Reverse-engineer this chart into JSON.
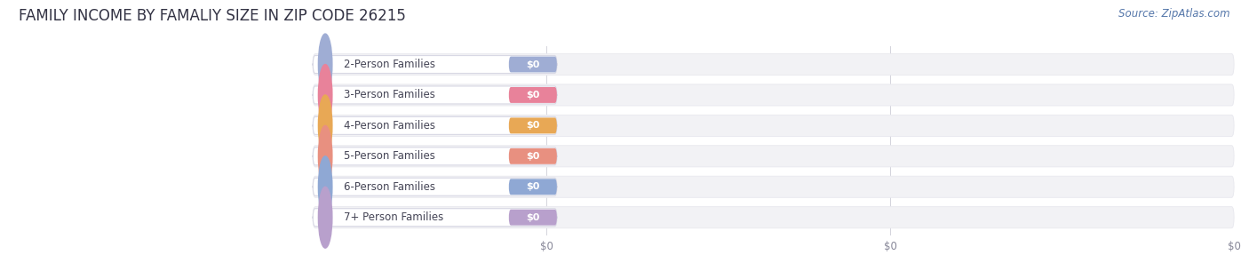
{
  "title": "FAMILY INCOME BY FAMALIY SIZE IN ZIP CODE 26215",
  "source_text": "Source: ZipAtlas.com",
  "categories": [
    "2-Person Families",
    "3-Person Families",
    "4-Person Families",
    "5-Person Families",
    "6-Person Families",
    "7+ Person Families"
  ],
  "values": [
    0,
    0,
    0,
    0,
    0,
    0
  ],
  "bar_colors": [
    "#9fadd4",
    "#e8829a",
    "#e8a855",
    "#e89080",
    "#8fa8d4",
    "#b8a0cc"
  ],
  "label_bg_colors": [
    "#f0f2fa",
    "#fef0f3",
    "#fef6ee",
    "#fef0ee",
    "#f0f2fa",
    "#f5f0fa"
  ],
  "bar_track_color": "#f2f2f5",
  "bar_track_edge": "#e8e8ee",
  "background_color": "#ffffff",
  "title_fontsize": 12,
  "source_fontsize": 8.5,
  "label_fontsize": 8.5,
  "value_fontsize": 8,
  "tick_fontsize": 8.5,
  "tick_color": "#888899",
  "label_text_color": "#444455",
  "xlim_min": 0,
  "xlim_max": 100,
  "n_xticks": 3,
  "xtick_vals": [
    0,
    50,
    100
  ],
  "xtick_labels": [
    "$0",
    "$0",
    "$0"
  ]
}
